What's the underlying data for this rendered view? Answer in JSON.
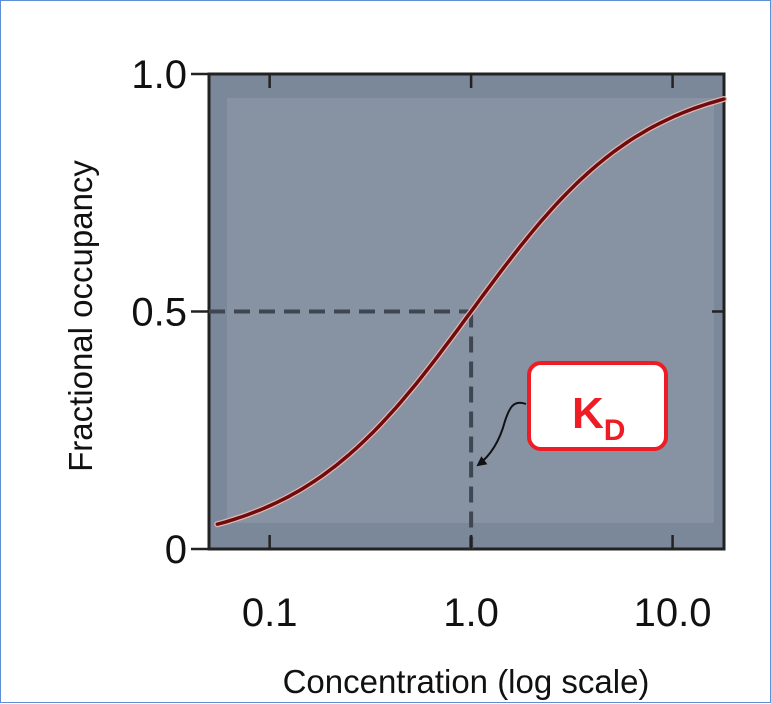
{
  "chart_data": {
    "type": "line",
    "title": "",
    "xlabel": "Concentration (log scale)",
    "ylabel": "Fractional occupancy",
    "x_scale": "log",
    "xlim": [
      0.05,
      18
    ],
    "ylim": [
      0,
      1.0
    ],
    "x_ticks": [
      {
        "value": 0.1,
        "label": "0.1"
      },
      {
        "value": 1.0,
        "label": "1.0"
      },
      {
        "value": 10.0,
        "label": "10.0"
      }
    ],
    "y_ticks": [
      {
        "value": 0,
        "label": "0"
      },
      {
        "value": 0.5,
        "label": "0.5"
      },
      {
        "value": 1.0,
        "label": "1.0"
      }
    ],
    "series": [
      {
        "kd": 1.0,
        "x": [
          0.055,
          0.1,
          0.2,
          0.3,
          0.5,
          0.7,
          1.0,
          1.5,
          2.0,
          3.0,
          5.0,
          7.0,
          10.0,
          18.0
        ],
        "y": [
          0.052,
          0.091,
          0.167,
          0.231,
          0.333,
          0.412,
          0.5,
          0.6,
          0.667,
          0.75,
          0.833,
          0.875,
          0.909,
          0.947
        ]
      }
    ],
    "reference_lines": {
      "x": 1.0,
      "y": 0.5
    },
    "annotation": {
      "label": "K",
      "subscript": "D",
      "points_to_x": 1.0
    }
  },
  "colors": {
    "plot_background": "#7b889a",
    "inner_band": "#8792a2",
    "curve": "#6e0b0b",
    "reference_line": "#3e4652",
    "annotation_border": "#ee1c24",
    "annotation_text": "#ee1c24",
    "frame_border": "#5b8fd6"
  }
}
